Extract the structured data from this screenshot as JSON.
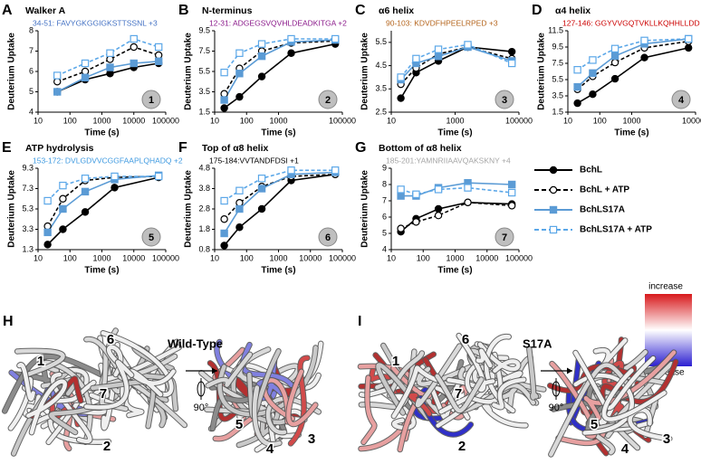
{
  "chart_data": [
    {
      "type": "line",
      "panel": "A",
      "title": "Walker A",
      "subtitle": "34-51: FAVYGKGGIGKSTTSSNL +3",
      "subtitle_color": "#4472c4",
      "badge": "1",
      "xlabel": "Time (s)",
      "ylabel": "Deuterium Uptake",
      "log_x": true,
      "xlim": [
        10,
        100000
      ],
      "xticks": [
        10,
        100,
        1000,
        10000,
        100000
      ],
      "ylim": [
        4,
        8
      ],
      "yticks": [
        4,
        5,
        6,
        7,
        8
      ],
      "x": [
        40,
        300,
        1800,
        10000,
        60000
      ],
      "series": [
        {
          "name": "BchL",
          "color": "#000000",
          "dashed": false,
          "marker": "circle",
          "filled": true,
          "values": [
            5.0,
            5.6,
            5.9,
            6.2,
            6.4
          ]
        },
        {
          "name": "BchL + ATP",
          "color": "#000000",
          "dashed": true,
          "marker": "circle",
          "filled": false,
          "values": [
            5.5,
            6.0,
            6.6,
            7.2,
            6.8
          ]
        },
        {
          "name": "BchLS17A",
          "color": "#5b9bd5",
          "dashed": false,
          "marker": "square",
          "filled": true,
          "values": [
            5.0,
            5.7,
            6.2,
            6.4,
            6.5
          ]
        },
        {
          "name": "BchLS17A + ATP",
          "color": "#5ba7e8",
          "dashed": true,
          "marker": "square",
          "filled": false,
          "values": [
            5.8,
            6.4,
            6.9,
            7.6,
            7.2
          ]
        }
      ]
    },
    {
      "type": "line",
      "panel": "B",
      "title": "N-terminus",
      "subtitle": "12-31: ADGEGSVQVHLDEADKITGA +2",
      "subtitle_color": "#8b1a8b",
      "badge": "2",
      "xlabel": "Time (s)",
      "ylabel": "Deuterium Uptake",
      "log_x": true,
      "xlim": [
        10,
        100000
      ],
      "xticks": [
        10,
        100,
        1000,
        100000
      ],
      "ylim": [
        1.5,
        9.5
      ],
      "yticks": [
        1.5,
        3.5,
        5.5,
        7.5,
        9.5
      ],
      "x": [
        20,
        60,
        300,
        2500,
        60000
      ],
      "series": [
        {
          "name": "BchL",
          "color": "#000000",
          "dashed": false,
          "marker": "circle",
          "filled": true,
          "values": [
            1.9,
            3.0,
            5.0,
            7.3,
            8.2
          ]
        },
        {
          "name": "BchL + ATP",
          "color": "#000000",
          "dashed": true,
          "marker": "circle",
          "filled": false,
          "values": [
            3.3,
            5.8,
            7.5,
            8.3,
            8.5
          ]
        },
        {
          "name": "BchLS17A",
          "color": "#5b9bd5",
          "dashed": false,
          "marker": "square",
          "filled": true,
          "values": [
            2.7,
            5.3,
            7.0,
            8.4,
            8.6
          ]
        },
        {
          "name": "BchLS17A + ATP",
          "color": "#5ba7e8",
          "dashed": true,
          "marker": "square",
          "filled": false,
          "values": [
            5.4,
            7.3,
            8.2,
            8.7,
            8.7
          ]
        }
      ]
    },
    {
      "type": "line",
      "panel": "C",
      "title": "α6 helix",
      "subtitle": "90-103: KDVDFHPEELRPED +3",
      "subtitle_color": "#b5651d",
      "badge": "3",
      "xlabel": "Time (s)",
      "ylabel": "Deuterium Uptake",
      "log_x": true,
      "xlim": [
        10,
        100000
      ],
      "xticks": [
        10,
        1000,
        100000
      ],
      "ylim": [
        2.5,
        6
      ],
      "yticks": [
        2.5,
        3.5,
        4.5,
        5.5
      ],
      "x": [
        20,
        60,
        300,
        2500,
        60000
      ],
      "series": [
        {
          "name": "BchL",
          "color": "#000000",
          "dashed": false,
          "marker": "circle",
          "filled": true,
          "values": [
            3.1,
            4.2,
            4.7,
            5.3,
            5.1
          ]
        },
        {
          "name": "BchL + ATP",
          "color": "#000000",
          "dashed": true,
          "marker": "circle",
          "filled": false,
          "values": [
            3.7,
            4.4,
            5.0,
            5.3,
            4.8
          ]
        },
        {
          "name": "BchLS17A",
          "color": "#5b9bd5",
          "dashed": false,
          "marker": "square",
          "filled": true,
          "values": [
            3.9,
            4.6,
            4.9,
            5.3,
            4.7
          ]
        },
        {
          "name": "BchLS17A + ATP",
          "color": "#5ba7e8",
          "dashed": true,
          "marker": "square",
          "filled": false,
          "values": [
            4.0,
            4.8,
            5.2,
            5.4,
            4.6
          ]
        }
      ]
    },
    {
      "type": "line",
      "panel": "D",
      "title": "α4 helix",
      "subtitle": "127-146: GGYVVGQTVKLLKQHHLLDD +3",
      "subtitle_color": "#cc0000",
      "badge": "4",
      "xlabel": "Time (s)",
      "ylabel": "Deuterium Uptake",
      "log_x": true,
      "xlim": [
        10,
        100000
      ],
      "xticks": [
        10,
        100,
        1000,
        100000
      ],
      "ylim": [
        1.5,
        11.5
      ],
      "yticks": [
        1.5,
        3.5,
        5.5,
        7.5,
        9.5,
        11.5
      ],
      "x": [
        20,
        60,
        300,
        2500,
        60000
      ],
      "series": [
        {
          "name": "BchL",
          "color": "#000000",
          "dashed": false,
          "marker": "circle",
          "filled": true,
          "values": [
            2.6,
            3.7,
            5.6,
            8.2,
            9.4
          ]
        },
        {
          "name": "BchL + ATP",
          "color": "#000000",
          "dashed": true,
          "marker": "circle",
          "filled": false,
          "values": [
            4.3,
            5.9,
            7.6,
            9.4,
            10.2
          ]
        },
        {
          "name": "BchLS17A",
          "color": "#5b9bd5",
          "dashed": false,
          "marker": "square",
          "filled": true,
          "values": [
            4.6,
            6.3,
            8.4,
            9.9,
            10.5
          ]
        },
        {
          "name": "BchLS17A + ATP",
          "color": "#5ba7e8",
          "dashed": true,
          "marker": "square",
          "filled": false,
          "values": [
            6.7,
            7.9,
            9.3,
            10.3,
            10.5
          ]
        }
      ]
    },
    {
      "type": "line",
      "panel": "E",
      "title": "ATP hydrolysis",
      "subtitle": "153-172: DVLGDVVCGGFAAPLQHADQ +2",
      "subtitle_color": "#3f9ae0",
      "badge": "5",
      "xlabel": "Time (s)",
      "ylabel": "Deuterium Uptake",
      "log_x": true,
      "xlim": [
        10,
        100000
      ],
      "xticks": [
        10,
        100,
        1000,
        10000,
        100000
      ],
      "ylim": [
        1.3,
        9.3
      ],
      "yticks": [
        1.3,
        3.3,
        5.3,
        7.3,
        9.3
      ],
      "x": [
        20,
        60,
        300,
        2500,
        60000
      ],
      "series": [
        {
          "name": "BchL",
          "color": "#000000",
          "dashed": false,
          "marker": "circle",
          "filled": true,
          "values": [
            1.8,
            3.3,
            5.0,
            7.4,
            8.4
          ]
        },
        {
          "name": "BchL + ATP",
          "color": "#000000",
          "dashed": true,
          "marker": "circle",
          "filled": false,
          "values": [
            3.6,
            6.3,
            8.1,
            8.4,
            8.5
          ]
        },
        {
          "name": "BchLS17A",
          "color": "#5b9bd5",
          "dashed": false,
          "marker": "square",
          "filled": true,
          "values": [
            3.0,
            5.3,
            7.0,
            8.2,
            8.6
          ]
        },
        {
          "name": "BchLS17A + ATP",
          "color": "#5ba7e8",
          "dashed": true,
          "marker": "square",
          "filled": false,
          "values": [
            6.1,
            7.6,
            8.3,
            8.5,
            8.5
          ]
        }
      ]
    },
    {
      "type": "line",
      "panel": "F",
      "title": "Top of α8 helix",
      "subtitle": "175-184:VVTANDFDSI +1",
      "subtitle_color": "#000000",
      "badge": "6",
      "xlabel": "Time (s)",
      "ylabel": "Deuterium Uptake",
      "log_x": true,
      "xlim": [
        10,
        100000
      ],
      "xticks": [
        10,
        100,
        1000,
        10000,
        100000
      ],
      "ylim": [
        0.8,
        4.8
      ],
      "yticks": [
        0.8,
        1.8,
        2.8,
        3.8,
        4.8
      ],
      "x": [
        20,
        60,
        300,
        2500,
        60000
      ],
      "series": [
        {
          "name": "BchL",
          "color": "#000000",
          "dashed": false,
          "marker": "circle",
          "filled": true,
          "values": [
            1.0,
            1.9,
            2.8,
            4.2,
            4.5
          ]
        },
        {
          "name": "BchL + ATP",
          "color": "#000000",
          "dashed": true,
          "marker": "circle",
          "filled": false,
          "values": [
            2.3,
            3.1,
            3.9,
            4.4,
            4.5
          ]
        },
        {
          "name": "BchLS17A",
          "color": "#5b9bd5",
          "dashed": false,
          "marker": "square",
          "filled": true,
          "values": [
            1.6,
            2.8,
            3.8,
            4.5,
            4.6
          ]
        },
        {
          "name": "BchLS17A + ATP",
          "color": "#5ba7e8",
          "dashed": true,
          "marker": "square",
          "filled": false,
          "values": [
            3.2,
            3.7,
            4.3,
            4.7,
            4.7
          ]
        }
      ]
    },
    {
      "type": "line",
      "panel": "G",
      "title": "Bottom of α8 helix",
      "subtitle": "185-201:YAMNRIIAAVQAKSKNY +4",
      "subtitle_color": "#a6a6a6",
      "badge": "7",
      "xlabel": "Time (s)",
      "ylabel": "Deuterium Uptake",
      "log_x": true,
      "xlim": [
        10,
        100000
      ],
      "xticks": [
        10,
        100,
        1000,
        10000,
        100000
      ],
      "ylim": [
        4,
        9
      ],
      "yticks": [
        4,
        5,
        6,
        7,
        8,
        9
      ],
      "x": [
        20,
        60,
        300,
        2500,
        60000
      ],
      "series": [
        {
          "name": "BchL",
          "color": "#000000",
          "dashed": false,
          "marker": "circle",
          "filled": true,
          "values": [
            5.1,
            5.9,
            6.5,
            6.9,
            6.8
          ]
        },
        {
          "name": "BchL + ATP",
          "color": "#000000",
          "dashed": true,
          "marker": "circle",
          "filled": false,
          "values": [
            5.3,
            5.7,
            6.1,
            6.9,
            6.7
          ]
        },
        {
          "name": "BchLS17A",
          "color": "#5b9bd5",
          "dashed": false,
          "marker": "square",
          "filled": true,
          "values": [
            7.3,
            7.3,
            7.8,
            8.1,
            8.0
          ]
        },
        {
          "name": "BchLS17A + ATP",
          "color": "#5ba7e8",
          "dashed": true,
          "marker": "square",
          "filled": false,
          "values": [
            7.7,
            7.4,
            7.7,
            7.8,
            7.5
          ]
        }
      ]
    }
  ],
  "colorbar": {
    "top": "increase",
    "bottom": "decrease"
  },
  "structures": [
    {
      "panel": "H",
      "title": "Wild-Type",
      "rotation": "90°",
      "labels": [
        "1",
        "6",
        "7",
        "2",
        "5",
        "4",
        "3"
      ]
    },
    {
      "panel": "I",
      "title": "S17A",
      "rotation": "90°",
      "labels": [
        "1",
        "6",
        "7",
        "2",
        "5",
        "4",
        "3"
      ]
    }
  ]
}
